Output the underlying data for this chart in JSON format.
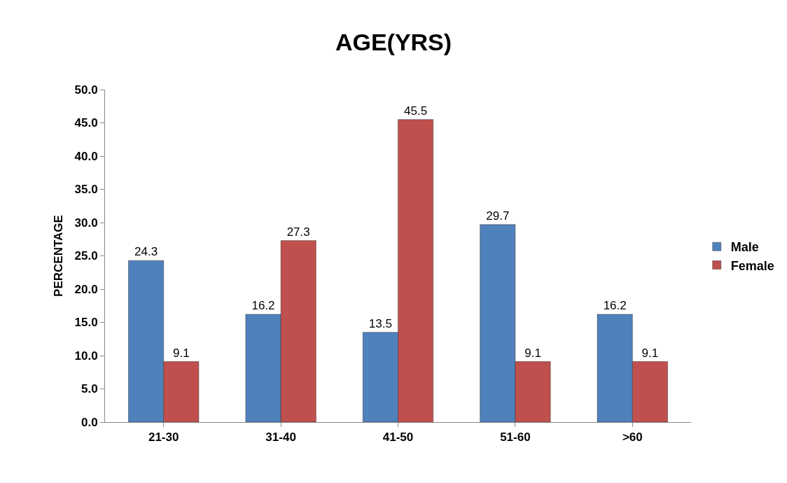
{
  "chart_data": {
    "type": "bar",
    "title": "AGE(YRS)",
    "ylabel": "PERCENTAGE",
    "categories": [
      "21-30",
      "31-40",
      "41-50",
      "51-60",
      ">60"
    ],
    "series": [
      {
        "name": "Male",
        "color": "#4f81bd",
        "values": [
          24.3,
          16.2,
          13.5,
          29.7,
          16.2
        ]
      },
      {
        "name": "Female",
        "color": "#c0504d",
        "values": [
          9.1,
          27.3,
          45.5,
          9.1,
          9.1
        ]
      }
    ],
    "ylim": [
      0,
      50
    ],
    "yticks": [
      {
        "value": 0,
        "label": "0.0"
      },
      {
        "value": 5,
        "label": "5.0"
      },
      {
        "value": 10,
        "label": "10.0"
      },
      {
        "value": 15,
        "label": "15.0"
      },
      {
        "value": 20,
        "label": "20.0"
      },
      {
        "value": 25,
        "label": "25.0"
      },
      {
        "value": 30,
        "label": "30.0"
      },
      {
        "value": 35,
        "label": "35.0"
      },
      {
        "value": 40,
        "label": "40.0"
      },
      {
        "value": 45,
        "label": "45.0"
      },
      {
        "value": 50,
        "label": "50.0"
      }
    ],
    "grid": false,
    "legend": "right",
    "data_labels": true
  }
}
